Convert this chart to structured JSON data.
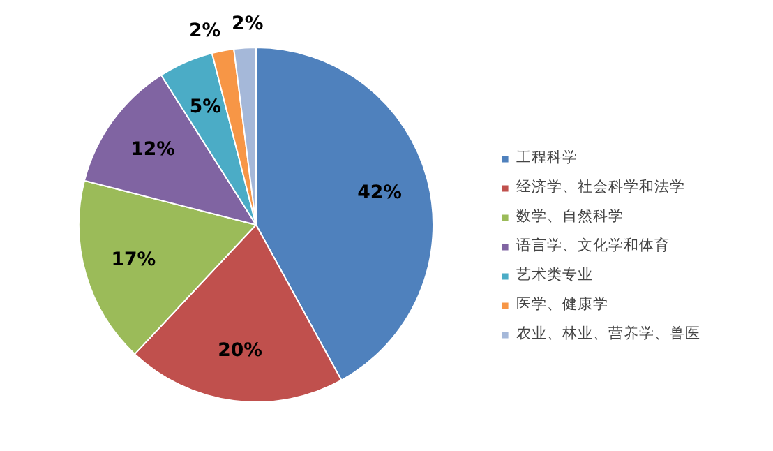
{
  "chart_data": {
    "type": "pie",
    "categories": [
      "工程科学",
      "经济学、社会科学和法学",
      "数学、自然科学",
      "语言学、文化学和体育",
      "艺术类专业",
      "医学、健康学",
      "农业、林业、营养学、兽医"
    ],
    "values": [
      42,
      20,
      17,
      12,
      5,
      2,
      2
    ],
    "value_labels": [
      "42%",
      "20%",
      "17%",
      "12%",
      "5%",
      "2%",
      "2%"
    ],
    "colors": [
      "#4f81bd",
      "#c0504d",
      "#9bbb59",
      "#8064a2",
      "#4bacc6",
      "#f79646",
      "#a5b8d9"
    ],
    "legend": "right"
  }
}
